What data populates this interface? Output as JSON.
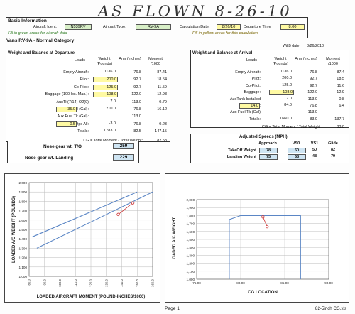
{
  "handwritten": "AS FLOWN 8-26-10",
  "basic": {
    "title": "Basic Information",
    "ident_label": "Aircraft Ident:",
    "ident": "N539RV",
    "type_label": "Aircraft Type:",
    "type": "RV-9A",
    "calc_label": "Calculation Date:",
    "calc_date": "8/26/10",
    "dep_label": "Departure Time",
    "dep_time": "8:00",
    "note_green": "Fill in green areas for aircraft data",
    "note_yellow": "Fill in yellow areas for this calculation",
    "category": "Vans RV-9A - Normal Category"
  },
  "wb_date_label": "W&B date",
  "wb_date": "8/26/2010",
  "departure": {
    "title": "Weight and Balance at Departure",
    "headers": [
      "Loads",
      "Weight (Pounds)",
      "Arm (Inches)",
      "Moment /1000"
    ],
    "rows": [
      {
        "label": "Empty Aircraft:",
        "weight": "1136.0",
        "arm": "76.8",
        "moment": "87.41"
      },
      {
        "label": "Pilot:",
        "weight": "200.0",
        "arm": "92.7",
        "moment": "18.54"
      },
      {
        "label": "Co-Pilot:",
        "weight": "125.0",
        "arm": "92.7",
        "moment": "11.59"
      },
      {
        "label": "Baggage (100 lbs. Max.):",
        "weight": "108.0",
        "arm": "122.0",
        "moment": "12.93"
      },
      {
        "label": "AuxTk(7/14)      O2(9)",
        "weight": "7.0",
        "arm": "113.0",
        "moment": "0.79"
      },
      {
        "label": "Fuel (Gal):",
        "gal": "35.0",
        "weight": "210.0",
        "arm": "76.8",
        "moment": "16.12"
      },
      {
        "label": "Aux Fuel Tk (Gal):",
        "weight": "",
        "arm": "113.0",
        "moment": ""
      },
      {
        "label": "Grnd Ops All:",
        "gal": "0.5",
        "weight": "-3.0",
        "arm": "76.8",
        "moment": "-0.23"
      },
      {
        "label": "Totals:",
        "weight": "1783.0",
        "arm": "82.5",
        "moment": "147.15"
      }
    ],
    "cg_label": "CG = Total Moment / Total Weight:",
    "cg": "82.53"
  },
  "arrival": {
    "title": "Weight and Balance at Arrival",
    "headers": [
      "Loads",
      "Weight (Pounds)",
      "Arm (Inches)",
      "Moment /1000"
    ],
    "rows": [
      {
        "label": "Empty Aircraft:",
        "weight": "1136.0",
        "arm": "76.8",
        "moment": "87.4"
      },
      {
        "label": "Pilot:",
        "weight": "200.0",
        "arm": "92.7",
        "moment": "18.5"
      },
      {
        "label": "Co-Pilot:",
        "weight": "125.0",
        "arm": "92.7",
        "moment": "11.6"
      },
      {
        "label": "Baggage:",
        "weight": "108.0",
        "arm": "122.0",
        "moment": "12.9"
      },
      {
        "label": "AuxTank Installed",
        "weight": "7.0",
        "arm": "113.0",
        "moment": "0.8"
      },
      {
        "label": "Fuel (Gal):",
        "gal": "14.0",
        "weight": "84.0",
        "arm": "76.8",
        "moment": "6.4"
      },
      {
        "label": "Aux Fuel Tk (Gal)",
        "weight": "",
        "arm": "113.0",
        "moment": ""
      },
      {
        "label": "Totals:",
        "weight": "1660.0",
        "arm": "83.0",
        "moment": "137.7"
      }
    ],
    "cg_label": "CG = Total Moment / Total Weight",
    "cg": "83.0"
  },
  "nose_gear": {
    "to_label": "Nose gear wt. T/O",
    "to_value": "259",
    "land_label": "Nose gear wt. Landing",
    "land_value": "229"
  },
  "speeds": {
    "title": "Adjusted Speeds (MPH)",
    "headers": [
      "Approach",
      "VS0",
      "VS1",
      "Glide"
    ],
    "rows": [
      {
        "label": "TakeOff Weight",
        "values": [
          "78",
          "60",
          "50",
          "82"
        ]
      },
      {
        "label": "Landing Weight",
        "values": [
          "75",
          "58",
          "48",
          "79"
        ]
      }
    ]
  },
  "chart_data": [
    {
      "type": "line",
      "title": "",
      "xlabel": "LOADED AIRCRAFT MOMENT (POUND-INCHES/1000)",
      "ylabel": "LOADED A/C WEIGHT (POUNDS)",
      "xlim": [
        80,
        160
      ],
      "ylim": [
        1000,
        2000
      ],
      "x_ticks": [
        "80.0",
        "90.0",
        "100.0",
        "110.0",
        "120.0",
        "130.0",
        "140.0",
        "150.0",
        "160.0"
      ],
      "y_ticks": [
        "1,000",
        "1,100",
        "1,200",
        "1,300",
        "1,400",
        "1,500",
        "1,600",
        "1,700",
        "1,800",
        "1,900",
        "2,000"
      ],
      "grid": true,
      "envelope_lower": [
        [
          85,
          1300
        ],
        [
          160,
          1900
        ]
      ],
      "envelope_upper": [
        [
          82,
          1420
        ],
        [
          150,
          1900
        ]
      ],
      "points": [
        {
          "x": 137.7,
          "y": 1660
        },
        {
          "x": 147.15,
          "y": 1783
        }
      ]
    },
    {
      "type": "line",
      "title": "",
      "xlabel": "CG LOCATION",
      "ylabel": "LOADED A/C WEIGHT",
      "xlim": [
        75,
        90
      ],
      "ylim": [
        1000,
        2000
      ],
      "x_ticks": [
        "75.00",
        "80.00",
        "85.00",
        "90.00"
      ],
      "y_ticks": [
        "1,000",
        "1,100",
        "1,200",
        "1,300",
        "1,400",
        "1,500",
        "1,600",
        "1,700",
        "1,800",
        "1,900",
        "2,000"
      ],
      "grid": true,
      "envelope": [
        [
          78.7,
          1000
        ],
        [
          78.7,
          1750
        ],
        [
          80.0,
          1800
        ],
        [
          86.8,
          1800
        ],
        [
          86.8,
          1000
        ]
      ],
      "points": [
        {
          "x": 82.53,
          "y": 1783
        },
        {
          "x": 83.0,
          "y": 1660
        }
      ]
    }
  ],
  "footer": {
    "page": "Page 1",
    "file": "82-5inch CG.xls"
  }
}
